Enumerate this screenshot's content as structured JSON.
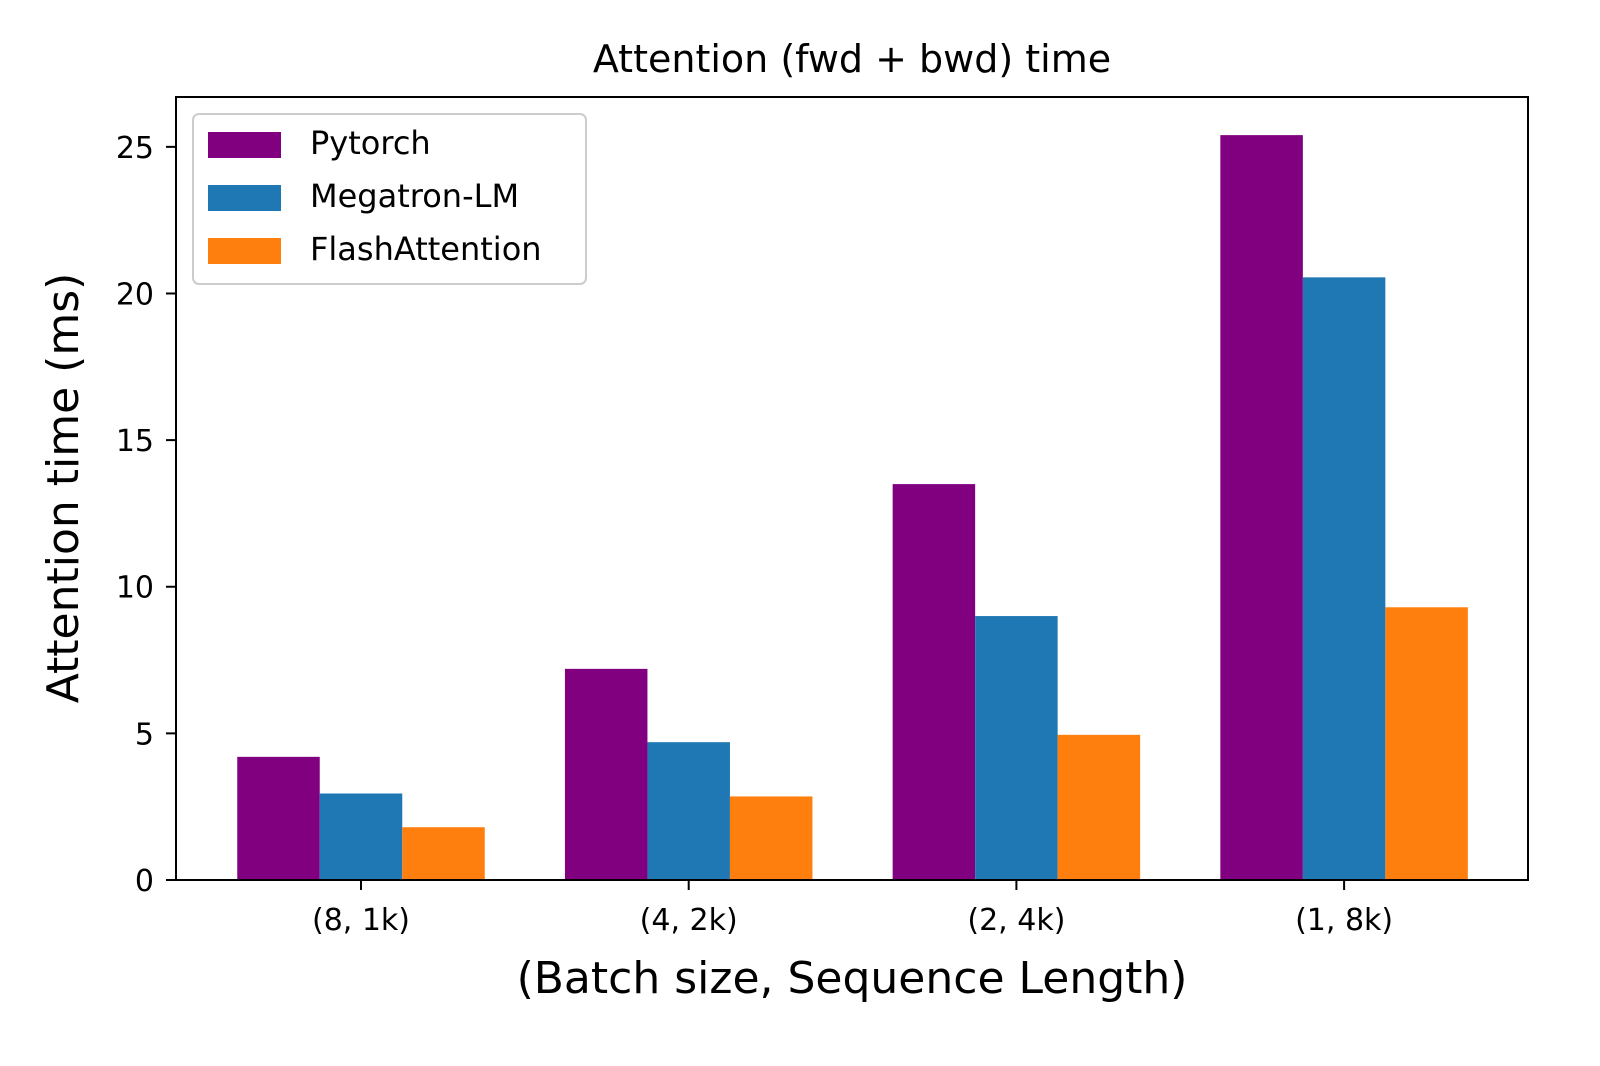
{
  "chart_data": {
    "type": "bar",
    "title": "Attention (fwd + bwd) time",
    "xlabel": "(Batch size, Sequence Length)",
    "ylabel": "Attention time (ms)",
    "categories": [
      "(8, 1k)",
      "(4, 2k)",
      "(2, 4k)",
      "(1, 8k)"
    ],
    "series": [
      {
        "name": "Pytorch",
        "color": "#800080",
        "values": [
          4.2,
          7.2,
          13.5,
          25.4
        ]
      },
      {
        "name": "Megatron-LM",
        "color": "#1f77b4",
        "values": [
          2.95,
          4.7,
          9.0,
          20.55
        ]
      },
      {
        "name": "FlashAttention",
        "color": "#ff7f0e",
        "values": [
          1.8,
          2.85,
          4.95,
          9.3
        ]
      }
    ],
    "ylim": [
      0,
      26.7
    ],
    "yticks": [
      "0",
      "5",
      "10",
      "15",
      "20",
      "25"
    ],
    "grid": false,
    "legend_position": "top-left"
  }
}
